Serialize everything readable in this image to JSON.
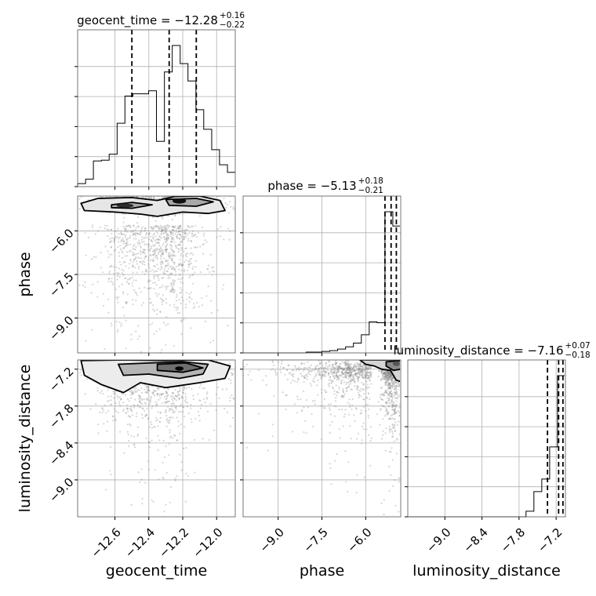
{
  "chart_data": {
    "type": "corner",
    "parameters": [
      "geocent_time",
      "phase",
      "luminosity_distance"
    ],
    "titles": [
      {
        "param": "geocent_time",
        "text": "geocent_time = −12.28",
        "plus": "+0.16",
        "minus": "−0.22",
        "median": -12.28,
        "err_plus": 0.16,
        "err_minus": 0.22
      },
      {
        "param": "phase",
        "text": "phase = −5.13",
        "plus": "+0.18",
        "minus": "−0.21",
        "median": -5.13,
        "err_plus": 0.18,
        "err_minus": 0.21
      },
      {
        "param": "luminosity_distance",
        "text": "luminosity_distance = −7.16",
        "plus": "+0.07",
        "minus": "−0.18",
        "median": -7.16,
        "err_plus": 0.07,
        "err_minus": 0.18
      }
    ],
    "ranges": {
      "geocent_time": [
        -12.82,
        -11.89
      ],
      "phase": [
        -10.2,
        -4.8
      ],
      "luminosity_distance": [
        -9.6,
        -7.05
      ]
    },
    "ticks": {
      "geocent_time": [
        -12.6,
        -12.4,
        -12.2,
        -12.0
      ],
      "phase": [
        -9.0,
        -7.5,
        -6.0
      ],
      "luminosity_distance": [
        -9.0,
        -8.4,
        -7.8,
        -7.2
      ]
    },
    "tick_labels": {
      "geocent_time": [
        "−12.6",
        "−12.4",
        "−12.2",
        "−12.0"
      ],
      "phase": [
        "−9.0",
        "−7.5",
        "−6.0"
      ],
      "luminosity_distance": [
        "−9.0",
        "−8.4",
        "−7.8",
        "−7.2"
      ]
    },
    "quantiles": {
      "geocent_time": [
        -12.5,
        -12.28,
        -12.12
      ],
      "phase": [
        -5.34,
        -5.13,
        -4.95
      ],
      "luminosity_distance": [
        -7.34,
        -7.16,
        -7.09
      ]
    },
    "histograms": {
      "geocent_time": {
        "edges": [
          -12.82,
          -12.773,
          -12.727,
          -12.68,
          -12.634,
          -12.587,
          -12.541,
          -12.494,
          -12.448,
          -12.401,
          -12.355,
          -12.308,
          -12.262,
          -12.215,
          -12.169,
          -12.122,
          -12.076,
          -12.029,
          -11.983,
          -11.936,
          -11.89
        ],
        "counts": [
          4,
          10,
          34,
          35,
          43,
          84,
          120,
          123,
          123,
          127,
          60,
          152,
          187,
          163,
          140,
          102,
          76,
          49,
          29,
          19
        ]
      },
      "phase": {
        "edges": [
          -10.2,
          -9.93,
          -9.66,
          -9.39,
          -9.12,
          -8.85,
          -8.58,
          -8.31,
          -8.04,
          -7.77,
          -7.5,
          -7.23,
          -6.96,
          -6.69,
          -6.42,
          -6.15,
          -5.88,
          -5.61,
          -5.34,
          -5.07,
          -4.8
        ],
        "counts": [
          0,
          0,
          0,
          0,
          0,
          0,
          0,
          0,
          1,
          1,
          2,
          3,
          5,
          8,
          13,
          24,
          41,
          40,
          187,
          168
        ]
      },
      "luminosity_distance": {
        "edges": [
          -9.6,
          -9.4725,
          -9.345,
          -9.2175,
          -9.09,
          -8.9625,
          -8.835,
          -8.7075,
          -8.58,
          -8.4525,
          -8.325,
          -8.1975,
          -8.07,
          -7.9425,
          -7.815,
          -7.6875,
          -7.56,
          -7.4325,
          -7.305,
          -7.1775,
          -7.05
        ],
        "counts": [
          0,
          0,
          0,
          0,
          0,
          0,
          0,
          0,
          0,
          0,
          0,
          0,
          0,
          0,
          0,
          4,
          18,
          27,
          50,
          101
        ]
      }
    },
    "grid": true,
    "xlabel_bottom": [
      "geocent_time",
      "phase",
      "luminosity_distance"
    ],
    "ylabel_left": [
      "phase",
      "luminosity_distance"
    ]
  }
}
